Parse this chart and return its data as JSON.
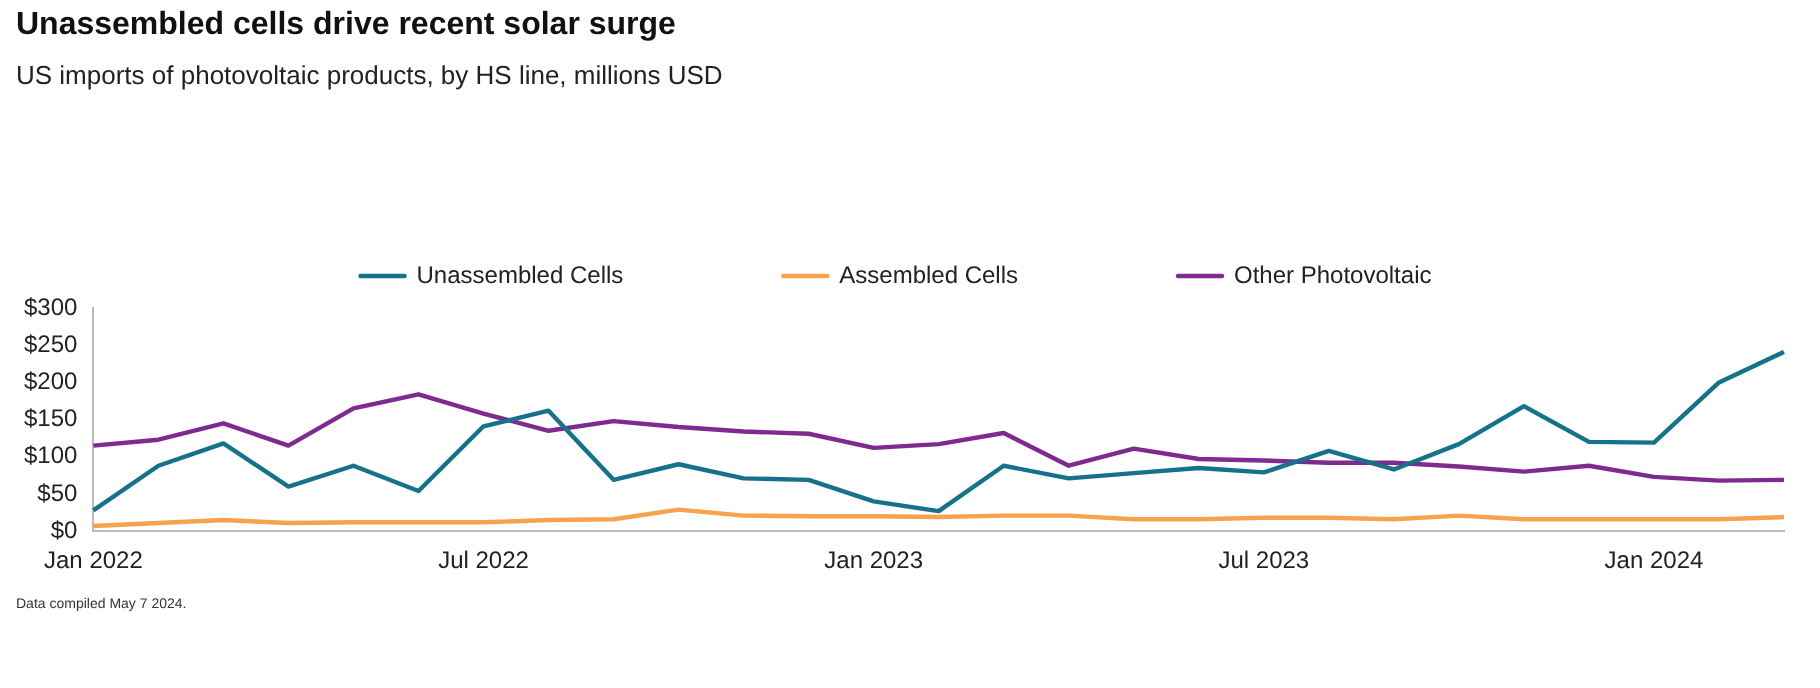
{
  "chart_data": {
    "type": "line",
    "title": "Unassembled cells drive recent solar surge",
    "subtitle": "US imports of photovoltaic products, by HS line, millions USD",
    "categories": [
      "Jan 2022",
      null,
      null,
      null,
      null,
      null,
      "Jul 2022",
      null,
      null,
      null,
      null,
      null,
      "Jan 2023",
      null,
      null,
      null,
      null,
      null,
      "Jul 2023",
      null,
      null,
      null,
      null,
      null,
      "Jan 2024",
      null,
      null
    ],
    "series": [
      {
        "name": "Unassembled Cells",
        "color": "#16718a",
        "values": [
          28,
          88,
          118,
          60,
          88,
          54,
          141,
          162,
          69,
          90,
          71,
          69,
          40,
          27,
          88,
          71,
          78,
          85,
          79,
          108,
          83,
          117,
          168,
          120,
          119,
          200,
          241
        ]
      },
      {
        "name": "Assembled Cells",
        "color": "#f7a24c",
        "values": [
          7,
          11,
          15,
          11,
          12,
          12,
          12,
          15,
          16,
          29,
          21,
          20,
          20,
          19,
          21,
          21,
          16,
          16,
          18,
          18,
          16,
          21,
          16,
          16,
          16,
          16,
          19
        ]
      },
      {
        "name": "Other Photovoltaic",
        "color": "#7e2a8e",
        "values": [
          115,
          123,
          145,
          115,
          165,
          184,
          158,
          135,
          148,
          140,
          134,
          131,
          112,
          117,
          132,
          88,
          111,
          97,
          95,
          92,
          92,
          87,
          80,
          88,
          73,
          68,
          69
        ]
      }
    ],
    "ylim": [
      0,
      300
    ],
    "yticks": [
      {
        "value": 0,
        "label": "$0"
      },
      {
        "value": 50,
        "label": "$50"
      },
      {
        "value": 100,
        "label": "$100"
      },
      {
        "value": 150,
        "label": "$150"
      },
      {
        "value": 200,
        "label": "$200"
      },
      {
        "value": 250,
        "label": "$250"
      },
      {
        "value": 300,
        "label": "$300"
      }
    ],
    "grid": false,
    "legend": "top",
    "marker": "none",
    "line_style": "solid",
    "annotations": [
      "Data compiled May 7 2024."
    ]
  }
}
